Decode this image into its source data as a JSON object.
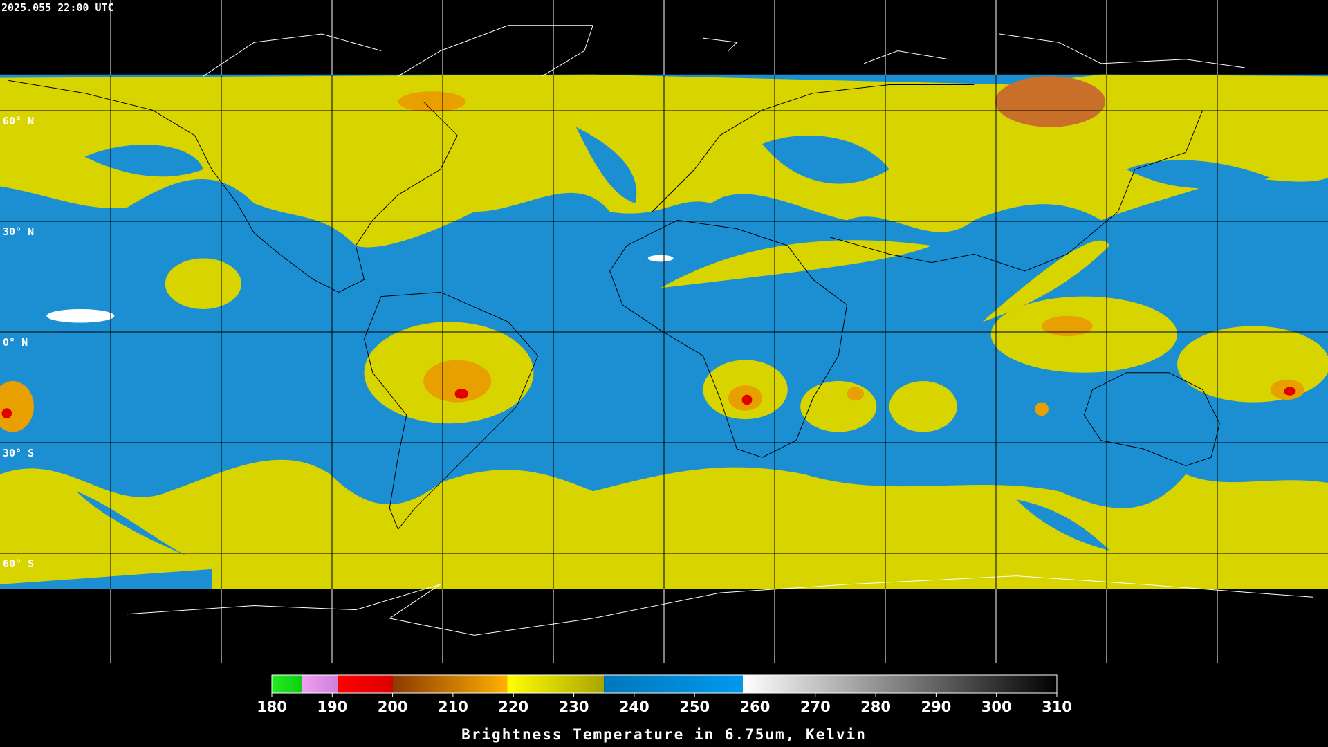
{
  "header": {
    "timestamp": "2025.055 22:00 UTC"
  },
  "map": {
    "latitude_labels": [
      "60° N",
      "30° N",
      "0° N",
      "30° S",
      "60° S"
    ]
  },
  "colorbar": {
    "type": "colorbar",
    "title": "Brightness Temperature in 6.75um, Kelvin",
    "xlim": [
      180,
      310
    ],
    "xticks": [
      180,
      190,
      200,
      210,
      220,
      230,
      240,
      250,
      260,
      270,
      280,
      290,
      300,
      310
    ],
    "segments": [
      {
        "start": 180,
        "end": 185,
        "colors": [
          "#22ee22",
          "#11cc11"
        ]
      },
      {
        "start": 185,
        "end": 191,
        "colors": [
          "#f0a0f0",
          "#cc80dd"
        ]
      },
      {
        "start": 191,
        "end": 200,
        "colors": [
          "#ff0000",
          "#dd0000"
        ]
      },
      {
        "start": 200,
        "end": 219,
        "colors": [
          "#8b3a00",
          "#ffb000"
        ]
      },
      {
        "start": 219,
        "end": 235,
        "colors": [
          "#ffff00",
          "#aaa500"
        ]
      },
      {
        "start": 235,
        "end": 258,
        "colors": [
          "#0077bb",
          "#0099ee"
        ]
      },
      {
        "start": 258,
        "end": 310,
        "colors": [
          "#ffffff",
          "#000000"
        ]
      }
    ]
  }
}
